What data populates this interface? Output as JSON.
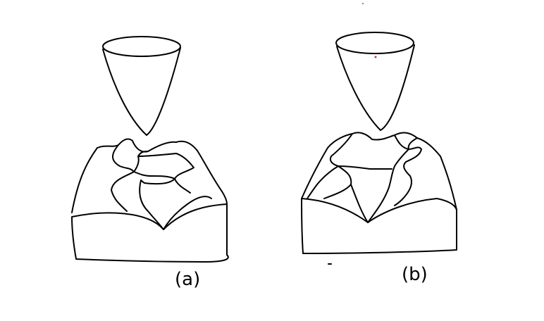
{
  "figure": {
    "panels": [
      {
        "id": "a",
        "label": "(a)"
      },
      {
        "id": "b",
        "label": "(b)"
      }
    ],
    "colors": {
      "ink": "#000000",
      "background": "#ffffff",
      "speck": "#cc3333"
    }
  }
}
